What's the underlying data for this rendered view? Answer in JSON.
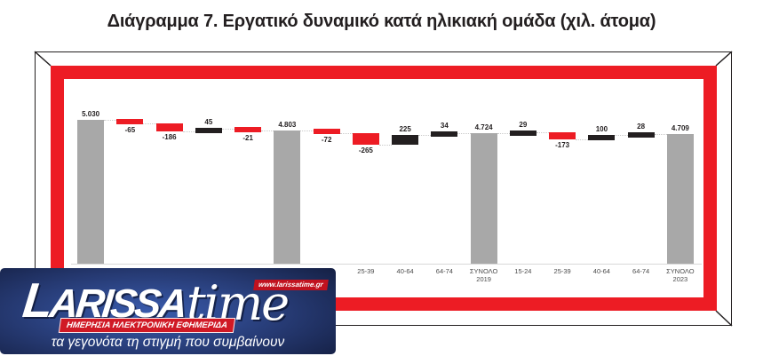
{
  "title": "Διάγραμμα 7. Εργατικό δυναμικό κατά ηλικιακή ομάδα (χιλ. άτομα)",
  "chart_data": {
    "type": "bar",
    "subtype": "waterfall",
    "title": "Διάγραμμα 7. Εργατικό δυναμικό κατά ηλικιακή ομάδα (χιλ. άτομα)",
    "legend": "none",
    "grid": "off",
    "bars": [
      {
        "label": "",
        "value": 5030,
        "display": "5.030",
        "kind": "total"
      },
      {
        "label": "",
        "value": -65,
        "display": "-65",
        "kind": "decrease"
      },
      {
        "label": "",
        "value": -186,
        "display": "-186",
        "kind": "decrease"
      },
      {
        "label": "",
        "value": 45,
        "display": "45",
        "kind": "increase"
      },
      {
        "label": "",
        "value": -21,
        "display": "-21",
        "kind": "decrease"
      },
      {
        "label": "",
        "value": 4803,
        "display": "4.803",
        "kind": "total"
      },
      {
        "label": "",
        "value": -72,
        "display": "-72",
        "kind": "decrease"
      },
      {
        "label": "25-39",
        "value": -265,
        "display": "-265",
        "kind": "decrease"
      },
      {
        "label": "40-64",
        "value": 225,
        "display": "225",
        "kind": "increase"
      },
      {
        "label": "64-74",
        "value": 34,
        "display": "34",
        "kind": "increase"
      },
      {
        "label": "ΣΥΝΟΛΟ\n2019",
        "value": 4724,
        "display": "4.724",
        "kind": "total"
      },
      {
        "label": "15-24",
        "value": 29,
        "display": "29",
        "kind": "increase"
      },
      {
        "label": "25-39",
        "value": -173,
        "display": "-173",
        "kind": "decrease"
      },
      {
        "label": "40-64",
        "value": 100,
        "display": "100",
        "kind": "increase"
      },
      {
        "label": "64-74",
        "value": 28,
        "display": "28",
        "kind": "increase"
      },
      {
        "label": "ΣΥΝΟΛΟ\n2023",
        "value": 4709,
        "display": "4.709",
        "kind": "total"
      }
    ],
    "colors": {
      "total": "#a8a8a8",
      "increase": "#231f20",
      "decrease": "#ed1c24"
    }
  },
  "frame": {
    "line_color": "#231f20",
    "band_color": "#ed1c24"
  },
  "logo": {
    "brand": "LARISSA",
    "brand_suffix": "time",
    "badge": "www.larissatime.gr",
    "subtitle": "ΗΜΕΡΗΣΙΑ ΗΛΕΚΤΡΟΝΙΚΗ ΕΦΗΜΕΡΙΔΑ",
    "tagline": "τα γεγονότα τη στιγμή που συμβαίνουν",
    "colors": {
      "background_navy": "#263a73",
      "accent_red": "#d01925"
    }
  }
}
